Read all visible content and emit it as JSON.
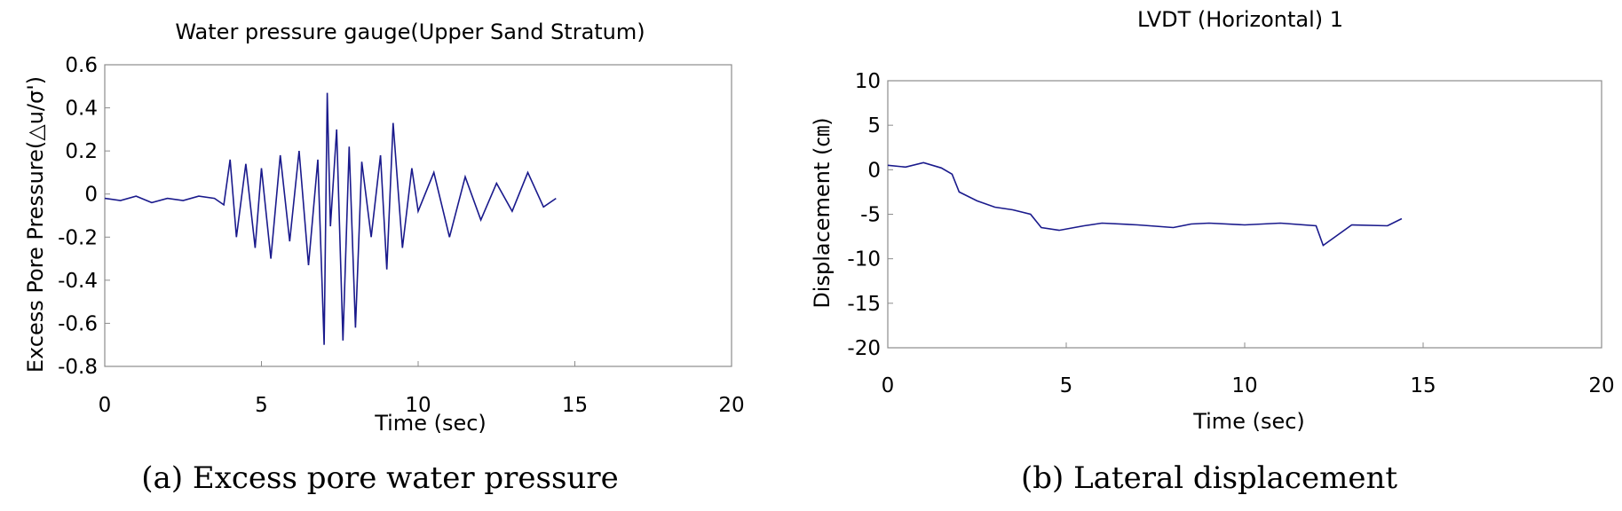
{
  "chart_data": [
    {
      "type": "line",
      "title": "Water pressure gauge(Upper Sand Stratum)",
      "xlabel": "Time (sec)",
      "ylabel": "Excess Pore Pressure(△u/σ')",
      "caption": "(a) Excess pore water pressure",
      "xlim": [
        0,
        20
      ],
      "ylim": [
        -0.8,
        0.6
      ],
      "x_ticks": [
        0,
        5,
        10,
        15,
        20
      ],
      "x_tick_labels": [
        "0",
        "5",
        "10",
        "15",
        "20"
      ],
      "y_ticks": [
        0.6,
        0.4,
        0.2,
        0,
        -0.2,
        -0.4,
        -0.6,
        -0.8
      ],
      "y_tick_labels": [
        "0.6",
        "0.4",
        "0.2",
        "0",
        "-0.2",
        "-0.4",
        "-0.6",
        "-0.8"
      ],
      "grid": false,
      "series": [
        {
          "name": "Excess pore pressure",
          "color": "#1a1a8c",
          "x": [
            0,
            0.5,
            1,
            1.5,
            2,
            2.5,
            3,
            3.5,
            3.8,
            4.0,
            4.2,
            4.5,
            4.8,
            5.0,
            5.3,
            5.6,
            5.9,
            6.2,
            6.5,
            6.8,
            7.0,
            7.1,
            7.2,
            7.4,
            7.6,
            7.8,
            8.0,
            8.2,
            8.5,
            8.8,
            9.0,
            9.2,
            9.5,
            9.8,
            10.0,
            10.5,
            11.0,
            11.5,
            12.0,
            12.5,
            13.0,
            13.5,
            14.0,
            14.4
          ],
          "y": [
            -0.02,
            -0.03,
            -0.01,
            -0.04,
            -0.02,
            -0.03,
            -0.01,
            -0.02,
            -0.05,
            0.16,
            -0.2,
            0.14,
            -0.25,
            0.12,
            -0.3,
            0.18,
            -0.22,
            0.2,
            -0.33,
            0.16,
            -0.7,
            0.47,
            -0.15,
            0.3,
            -0.68,
            0.22,
            -0.62,
            0.15,
            -0.2,
            0.18,
            -0.35,
            0.33,
            -0.25,
            0.12,
            -0.08,
            0.1,
            -0.2,
            0.08,
            -0.12,
            0.05,
            -0.08,
            0.1,
            -0.06,
            -0.02
          ]
        }
      ]
    },
    {
      "type": "line",
      "title": "LVDT (Horizontal) 1",
      "xlabel": "Time (sec)",
      "ylabel": "Displacement (㎝)",
      "caption": "(b) Lateral displacement",
      "xlim": [
        0,
        20
      ],
      "ylim": [
        -20,
        10
      ],
      "x_ticks": [
        0,
        5,
        10,
        15,
        20
      ],
      "x_tick_labels": [
        "0",
        "5",
        "10",
        "15",
        "20"
      ],
      "y_ticks": [
        10,
        5,
        0,
        -5,
        -10,
        -15,
        -20
      ],
      "y_tick_labels": [
        "10",
        "5",
        "0",
        "-5",
        "-10",
        "-15",
        "-20"
      ],
      "grid": false,
      "series": [
        {
          "name": "Lateral displacement",
          "color": "#1a1a8c",
          "x": [
            0,
            0.5,
            1.0,
            1.5,
            1.8,
            2.0,
            2.5,
            3.0,
            3.5,
            4.0,
            4.3,
            4.8,
            5.5,
            6.0,
            7.0,
            8.0,
            8.5,
            9.0,
            10.0,
            11.0,
            12.0,
            12.2,
            13.0,
            14.0,
            14.4
          ],
          "y": [
            0.5,
            0.3,
            0.8,
            0.2,
            -0.5,
            -2.5,
            -3.5,
            -4.2,
            -4.5,
            -5.0,
            -6.5,
            -6.8,
            -6.3,
            -6.0,
            -6.2,
            -6.5,
            -6.1,
            -6.0,
            -6.2,
            -6.0,
            -6.3,
            -8.5,
            -6.2,
            -6.3,
            -5.5
          ]
        }
      ]
    }
  ]
}
